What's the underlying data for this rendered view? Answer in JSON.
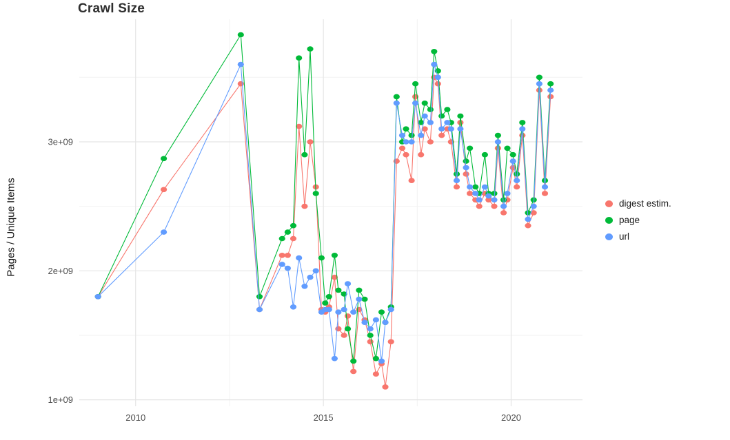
{
  "chart_data": {
    "type": "line",
    "title": "Crawl Size",
    "xlabel": "",
    "ylabel": "Pages / Unique Items",
    "y_unit": "1e9",
    "grid": true,
    "legend_position": "right",
    "xlim": [
      2008.5,
      2021.9
    ],
    "ylim_billions": [
      0.95,
      3.95
    ],
    "xticks": [
      {
        "value": 2010,
        "label": "2010"
      },
      {
        "value": 2015,
        "label": "2015"
      },
      {
        "value": 2020,
        "label": "2020"
      }
    ],
    "xticks_minor": [
      2012.5,
      2017.5
    ],
    "yticks": [
      {
        "value": 1,
        "label": "1e+09"
      },
      {
        "value": 2,
        "label": "2e+09"
      },
      {
        "value": 3,
        "label": "3e+09"
      }
    ],
    "yticks_minor": [
      1.5,
      2.5,
      3.5
    ],
    "x": [
      2009.0,
      2010.75,
      2012.8,
      2013.3,
      2013.9,
      2014.05,
      2014.2,
      2014.35,
      2014.5,
      2014.65,
      2014.8,
      2014.95,
      2015.05,
      2015.15,
      2015.3,
      2015.4,
      2015.55,
      2015.65,
      2015.8,
      2015.95,
      2016.1,
      2016.25,
      2016.4,
      2016.55,
      2016.65,
      2016.8,
      2016.95,
      2017.1,
      2017.2,
      2017.35,
      2017.45,
      2017.6,
      2017.7,
      2017.85,
      2017.95,
      2018.05,
      2018.15,
      2018.3,
      2018.4,
      2018.55,
      2018.65,
      2018.8,
      2018.9,
      2019.05,
      2019.15,
      2019.3,
      2019.4,
      2019.55,
      2019.65,
      2019.8,
      2019.9,
      2020.05,
      2020.15,
      2020.3,
      2020.45,
      2020.6,
      2020.75,
      2020.9,
      2021.05
    ],
    "series": [
      {
        "name": "digest estim.",
        "color": "#F8766D",
        "values_billions": [
          1.8,
          2.63,
          3.45,
          1.7,
          2.12,
          2.12,
          2.25,
          3.12,
          2.5,
          3.0,
          2.65,
          1.7,
          1.68,
          1.72,
          1.95,
          1.55,
          1.5,
          1.65,
          1.22,
          1.7,
          1.62,
          1.45,
          1.2,
          1.28,
          1.1,
          1.45,
          2.85,
          2.95,
          2.9,
          2.7,
          3.35,
          2.9,
          3.1,
          3.0,
          3.5,
          3.45,
          3.05,
          3.1,
          3.0,
          2.65,
          3.15,
          2.75,
          2.6,
          2.55,
          2.5,
          2.6,
          2.55,
          2.5,
          2.95,
          2.45,
          2.55,
          2.8,
          2.65,
          3.05,
          2.35,
          2.45,
          3.4,
          2.6,
          3.35
        ]
      },
      {
        "name": "page",
        "color": "#00BA38",
        "values_billions": [
          1.8,
          2.87,
          3.83,
          1.8,
          2.25,
          2.3,
          2.35,
          3.65,
          2.9,
          3.72,
          2.6,
          2.1,
          1.75,
          1.8,
          2.12,
          1.85,
          1.82,
          1.55,
          1.3,
          1.85,
          1.78,
          1.5,
          1.32,
          1.68,
          1.6,
          1.72,
          3.35,
          3.0,
          3.1,
          3.05,
          3.45,
          3.15,
          3.3,
          3.25,
          3.7,
          3.55,
          3.2,
          3.25,
          3.15,
          2.75,
          3.2,
          2.85,
          2.95,
          2.65,
          2.6,
          2.9,
          2.6,
          2.6,
          3.05,
          2.55,
          2.95,
          2.9,
          2.75,
          3.15,
          2.45,
          2.55,
          3.5,
          2.7,
          3.45
        ]
      },
      {
        "name": "url",
        "color": "#619CFF",
        "values_billions": [
          1.8,
          2.3,
          3.6,
          1.7,
          2.05,
          2.02,
          1.72,
          2.1,
          1.88,
          1.95,
          2.0,
          1.68,
          1.7,
          1.7,
          1.32,
          1.68,
          1.7,
          1.9,
          1.68,
          1.78,
          1.6,
          1.55,
          1.62,
          1.3,
          1.6,
          1.7,
          3.3,
          3.05,
          3.0,
          3.0,
          3.3,
          3.05,
          3.2,
          3.15,
          3.6,
          3.5,
          3.1,
          3.15,
          3.1,
          2.7,
          3.1,
          2.8,
          2.65,
          2.6,
          2.55,
          2.65,
          2.58,
          2.55,
          3.0,
          2.5,
          2.6,
          2.85,
          2.7,
          3.1,
          2.4,
          2.5,
          3.45,
          2.65,
          3.4
        ]
      }
    ],
    "grid_colors": {
      "major": "#e5e5e5",
      "minor": "#f2f2f2"
    },
    "tick_label_color": "#4d4d4d"
  }
}
